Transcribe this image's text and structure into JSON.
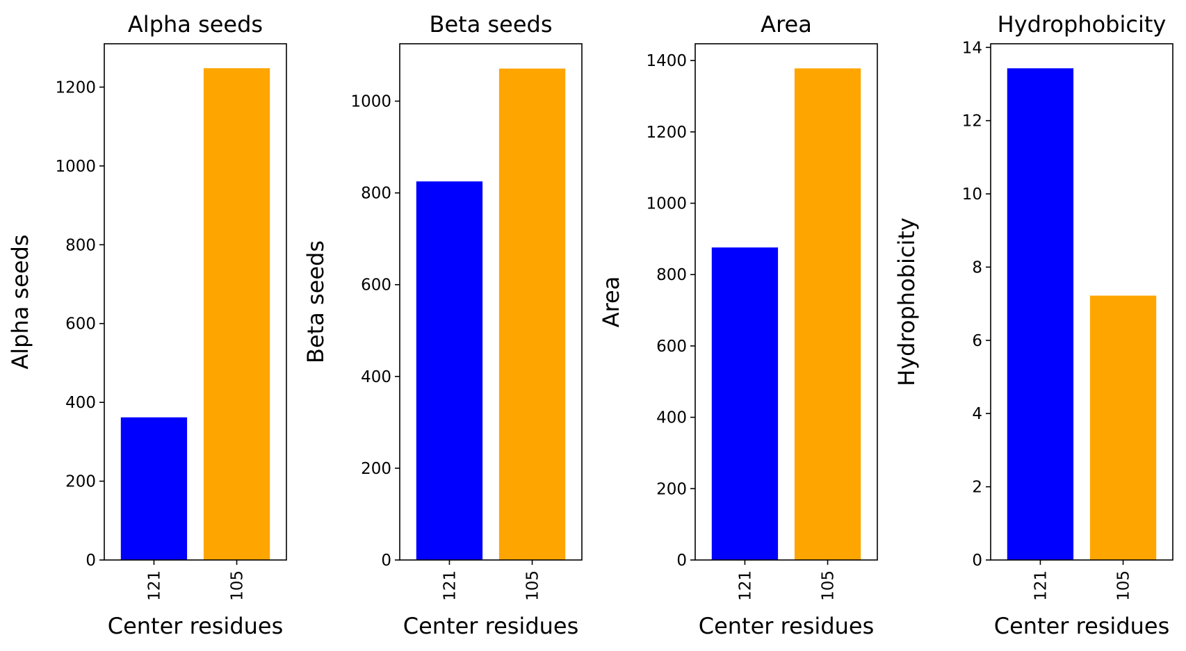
{
  "chart_data": [
    {
      "type": "bar",
      "title": "Alpha seeds",
      "xlabel": "Center residues",
      "ylabel": "Alpha seeds",
      "categories": [
        "121",
        "105"
      ],
      "values": [
        362,
        1248
      ],
      "colors": [
        "#0000ff",
        "#ffa500"
      ],
      "ylim": [
        0,
        1310
      ],
      "yticks": [
        0,
        200,
        400,
        600,
        800,
        1000,
        1200
      ],
      "grid": false
    },
    {
      "type": "bar",
      "title": "Beta seeds",
      "xlabel": "Center residues",
      "ylabel": "Beta seeds",
      "categories": [
        "121",
        "105"
      ],
      "values": [
        825,
        1071
      ],
      "colors": [
        "#0000ff",
        "#ffa500"
      ],
      "ylim": [
        0,
        1125
      ],
      "yticks": [
        0,
        200,
        400,
        600,
        800,
        1000
      ],
      "grid": false
    },
    {
      "type": "bar",
      "title": "Area",
      "xlabel": "Center residues",
      "ylabel": "Area",
      "categories": [
        "121",
        "105"
      ],
      "values": [
        876,
        1378
      ],
      "colors": [
        "#0000ff",
        "#ffa500"
      ],
      "ylim": [
        0,
        1447
      ],
      "yticks": [
        0,
        200,
        400,
        600,
        800,
        1000,
        1200,
        1400
      ],
      "grid": false
    },
    {
      "type": "bar",
      "title": "Hydrophobicity",
      "xlabel": "Center residues",
      "ylabel": "Hydrophobicity",
      "categories": [
        "121",
        "105"
      ],
      "values": [
        13.43,
        7.22
      ],
      "colors": [
        "#0000ff",
        "#ffa500"
      ],
      "ylim": [
        0,
        14.1
      ],
      "yticks": [
        0,
        2,
        4,
        6,
        8,
        10,
        12,
        14
      ],
      "grid": false
    }
  ]
}
